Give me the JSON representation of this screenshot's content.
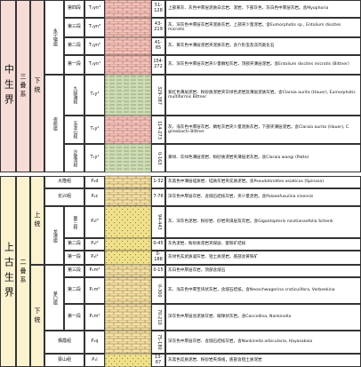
{
  "eras": [
    "中生界",
    "上古生界"
  ],
  "systems": [
    "三叠系",
    "二叠系"
  ],
  "series": [
    "下统",
    "上统",
    "下统"
  ],
  "formations": [
    "永宁镇组",
    "夜郎组",
    "大隆组",
    "长兴组",
    "龙潭组",
    "茅口组",
    "栖霞组",
    "梁山组"
  ],
  "rows": [
    {
      "member": "第四段",
      "code": "T₁yn⁴",
      "thickness": "51-128",
      "description": "上部黄灰、灰色中厚层泥质白云岩、泥岩，下部灰色、灰白色中厚层灰岩。含Myophoria"
    },
    {
      "member": "第三段",
      "code": "T₁yn³",
      "thickness": "43-219",
      "description": "灰、深灰色中厚层灰岩夹泥质灰岩，上部夹少量泥岩。含Eumorphotis sp., Entolium discites microtis"
    },
    {
      "member": "第二段",
      "code": "T₁yn²",
      "thickness": "41-65",
      "description": "灰、黄灰色中薄层泥岩夹泥质灰岩，含介形虫及双壳类化石"
    },
    {
      "member": "第一段",
      "code": "T₁yn¹",
      "thickness": "154-272",
      "description": "灰、深灰色中厚层灰岩夹少量鲕粒灰岩，顶部夹薄层泥岩。含Entolium discites microtis (Bittner)"
    },
    {
      "member": "九级滩段",
      "code": "T₁y³",
      "thickness": "329-387",
      "description": "紫红色薄层泥岩、粉砂质泥岩夹灰绿色泥岩及薄层泥质灰岩。含Claraia aurita (Hauer), Eumorphotis multiformis Bittner"
    },
    {
      "member": "玉龙山段",
      "code": "T₁y²",
      "thickness": "114-273",
      "description": "灰、浅灰色中厚层灰岩、鲕粒灰岩夹少量泥质灰岩，下部夹薄层泥岩。含Claraia aurita (Hauer), C. griesbachi Bittner"
    },
    {
      "member": "沙堡湾段",
      "code": "T₁y¹",
      "thickness": "0-163",
      "description": "黄绿、灰绿色薄层泥岩、粉砂质泥岩夹薄层泥灰岩。含Claraia wangi (Patte)"
    },
    {
      "code": "P₂d",
      "thickness": "1-32",
      "description": "灰黑色中薄层硅质岩、硅质灰岩夹炭质泥岩。含Pseudotirolites asiaticus (Spinosa)"
    },
    {
      "code": "P₂c",
      "thickness": "7-76",
      "description": "深灰色中厚层灰岩、含燧石结核灰岩，夹少量泥岩。含Palaeofusulina sinensis"
    },
    {
      "member": "第三段",
      "code": "P₂l³",
      "thickness": "94-443",
      "description": "灰、深灰色泥岩、粉砂岩、砂岩夹煤层及灰岩。含Gigantopteris nicotianaefolia Schenk"
    },
    {
      "member": "第二段",
      "code": "P₂l²",
      "thickness": "0-45",
      "description": "灰色泥岩、粉砂质泥岩夹煤层、菱铁矿结核"
    },
    {
      "member": "第一段",
      "code": "P₂l¹",
      "thickness": "0-188",
      "description": "灰绿色玄武质凝灰岩、铝土质泥岩，底部含黄铁矿"
    },
    {
      "member": "第三段",
      "code": "P₁m³",
      "thickness": "0-15",
      "description": "灰白色中厚层灰岩，顶部含燧石"
    },
    {
      "member": "第二段",
      "code": "P₁m²",
      "thickness": "0-300",
      "description": "灰、浅灰色中厚至块状灰岩，含燧石结核。含Neoschwagerina craticulifera, Verbeekina"
    },
    {
      "member": "第一段",
      "code": "P₁m¹",
      "thickness": "70-210",
      "description": "深灰色中厚层含泥质灰岩、眼球状灰岩。含Cancellina, Nankinella"
    },
    {
      "code": "P₁q",
      "thickness": "75-180",
      "description": "深灰色中厚层灰岩、含燧石结核灰岩，含Nankinella orbicularia, Hayasakaia"
    },
    {
      "code": "P₁l",
      "thickness": "13-67",
      "description": "灰黑色炭质泥岩、粉砂岩夹煤线，底部含铝土质泥岩"
    }
  ]
}
